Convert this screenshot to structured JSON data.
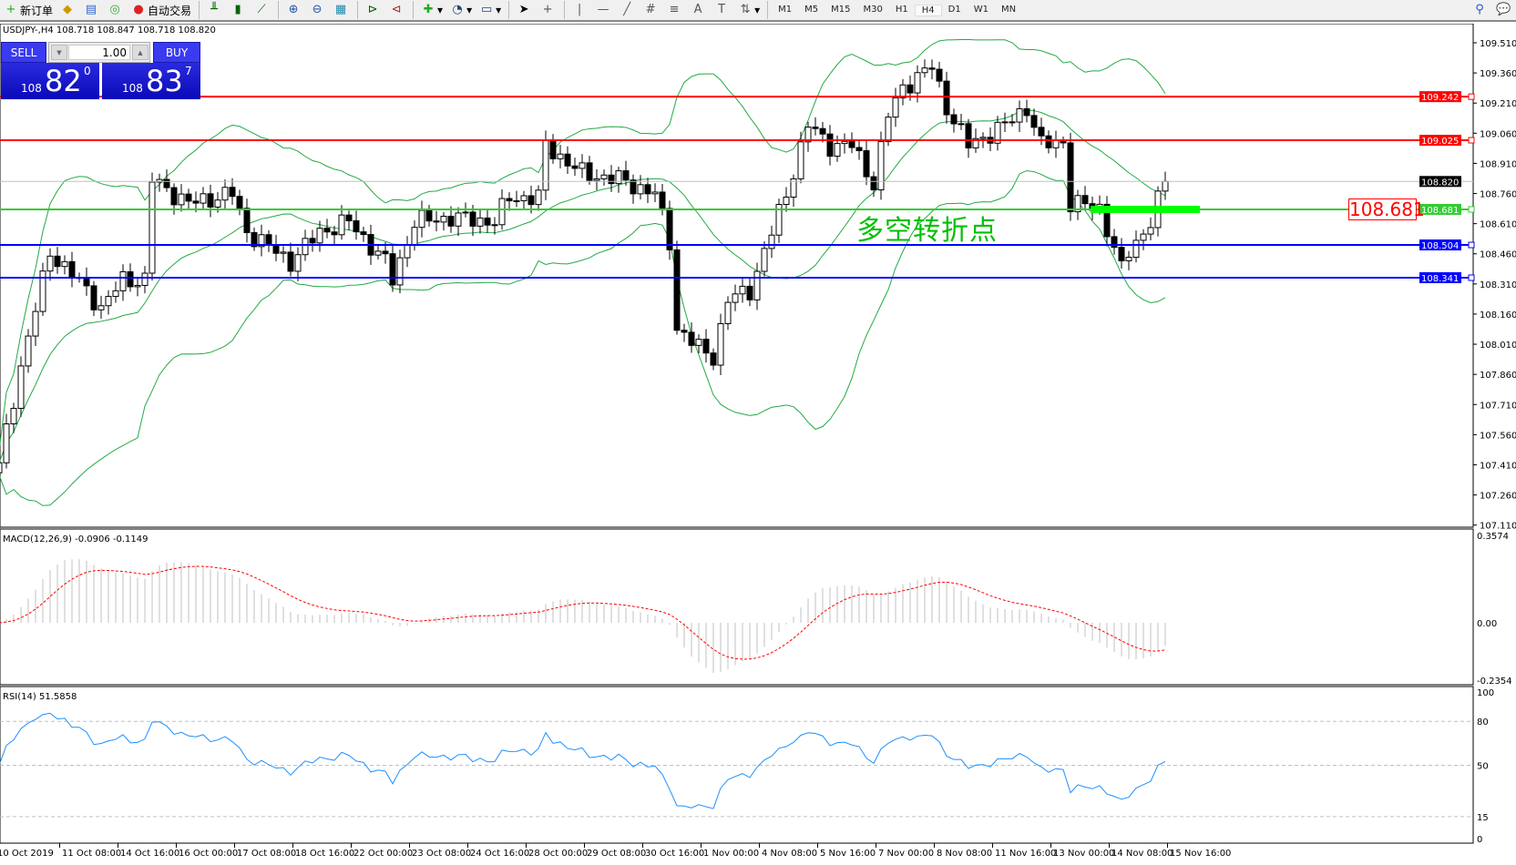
{
  "toolbar": {
    "new_order": "新订单",
    "auto_trading": "自动交易",
    "icons": [
      "bar-chart-icon",
      "candlestick-icon",
      "line-chart-icon",
      "zoom-in-icon",
      "zoom-out-icon",
      "tile-windows-icon",
      "chart-shift-icon",
      "autoscroll-icon",
      "indicators-icon",
      "periods-icon",
      "templates-icon",
      "cursor-icon",
      "crosshair-icon",
      "vertical-line-icon",
      "horizontal-line-icon",
      "trendline-icon",
      "fibonacci-icon",
      "fibo-lines-icon",
      "text-icon",
      "text-label-icon",
      "arrows-icon"
    ],
    "timeframes": [
      "M1",
      "M5",
      "M15",
      "M30",
      "H1",
      "H4",
      "D1",
      "W1",
      "MN"
    ],
    "active_timeframe": "H4"
  },
  "symbol_info": "USDJPY-,H4  108.718 108.847 108.718 108.820",
  "trade_panel": {
    "sell_label": "SELL",
    "buy_label": "BUY",
    "lot": "1.00",
    "sell": {
      "big": "108",
      "main": "82",
      "pip": "0"
    },
    "buy": {
      "big": "108",
      "main": "83",
      "pip": "7"
    }
  },
  "annotation": "多空转折点",
  "annotation_box": "108.681",
  "price_axis": [
    "109.510",
    "109.360",
    "109.210",
    "109.060",
    "108.910",
    "108.760",
    "108.610",
    "108.460",
    "108.310",
    "108.160",
    "108.010",
    "107.860",
    "107.710",
    "107.560",
    "107.410",
    "107.260",
    "107.110"
  ],
  "hlines": [
    {
      "price": 109.242,
      "label": "109.242",
      "color": "#ff0000"
    },
    {
      "price": 109.025,
      "label": "109.025",
      "color": "#ff0000"
    },
    {
      "price": 108.681,
      "label": "108.681",
      "color": "#33cc33"
    },
    {
      "price": 108.504,
      "label": "108.504",
      "color": "#0000ff"
    },
    {
      "price": 108.341,
      "label": "108.341",
      "color": "#0000ff"
    }
  ],
  "current_price": {
    "price": 108.82,
    "label": "108.820"
  },
  "macd": {
    "label": "MACD(12,26,9) -0.0906 -0.1149",
    "axis": [
      "0.3574",
      "0.00",
      "-0.2354"
    ]
  },
  "rsi": {
    "label": "RSI(14) 51.5858",
    "axis": [
      "100",
      "80",
      "50",
      "15",
      "0"
    ]
  },
  "time_axis": [
    "10 Oct 2019",
    "11 Oct 08:00",
    "14 Oct 16:00",
    "16 Oct 00:00",
    "17 Oct 08:00",
    "18 Oct 16:00",
    "22 Oct 00:00",
    "23 Oct 08:00",
    "24 Oct 16:00",
    "28 Oct 00:00",
    "29 Oct 08:00",
    "30 Oct 16:00",
    "1 Nov 00:00",
    "4 Nov 08:00",
    "5 Nov 16:00",
    "7 Nov 00:00",
    "8 Nov 08:00",
    "11 Nov 16:00",
    "13 Nov 00:00",
    "14 Nov 08:00",
    "15 Nov 16:00"
  ],
  "price_path": [
    [
      0,
      107.42
    ],
    [
      3,
      107.9
    ],
    [
      7,
      108.47
    ],
    [
      12,
      108.28
    ],
    [
      14,
      108.19
    ],
    [
      17,
      108.33
    ],
    [
      20,
      108.33
    ],
    [
      21,
      108.83
    ],
    [
      26,
      108.71
    ],
    [
      32,
      108.76
    ],
    [
      34,
      108.57
    ],
    [
      40,
      108.42
    ],
    [
      44,
      108.57
    ],
    [
      48,
      108.62
    ],
    [
      53,
      108.42
    ],
    [
      54,
      108.33
    ],
    [
      57,
      108.62
    ],
    [
      62,
      108.64
    ],
    [
      68,
      108.62
    ],
    [
      70,
      108.74
    ],
    [
      74,
      108.74
    ],
    [
      75,
      109.0
    ],
    [
      80,
      108.86
    ],
    [
      85,
      108.83
    ],
    [
      90,
      108.76
    ],
    [
      92,
      108.52
    ],
    [
      93,
      108.09
    ],
    [
      96,
      107.99
    ],
    [
      98,
      107.95
    ],
    [
      100,
      108.23
    ],
    [
      103,
      108.28
    ],
    [
      105,
      108.47
    ],
    [
      108,
      108.76
    ],
    [
      111,
      109.1
    ],
    [
      114,
      109.0
    ],
    [
      117,
      109.0
    ],
    [
      120,
      108.81
    ],
    [
      122,
      109.15
    ],
    [
      124,
      109.29
    ],
    [
      128,
      109.39
    ],
    [
      130,
      109.19
    ],
    [
      133,
      109.0
    ],
    [
      138,
      109.1
    ],
    [
      141,
      109.19
    ],
    [
      143,
      109.0
    ],
    [
      146,
      109.02
    ],
    [
      147,
      108.71
    ],
    [
      151,
      108.69
    ],
    [
      154,
      108.38
    ],
    [
      155,
      108.47
    ],
    [
      158,
      108.62
    ],
    [
      160,
      108.82
    ]
  ],
  "colors": {
    "bull": "#ffffff",
    "bear": "#000000",
    "bands": "#22aa44",
    "macd_hist": "#c0c0c0",
    "macd_signal": "#ff0000",
    "rsi": "#1e90ff",
    "annotation": "#00c000"
  }
}
